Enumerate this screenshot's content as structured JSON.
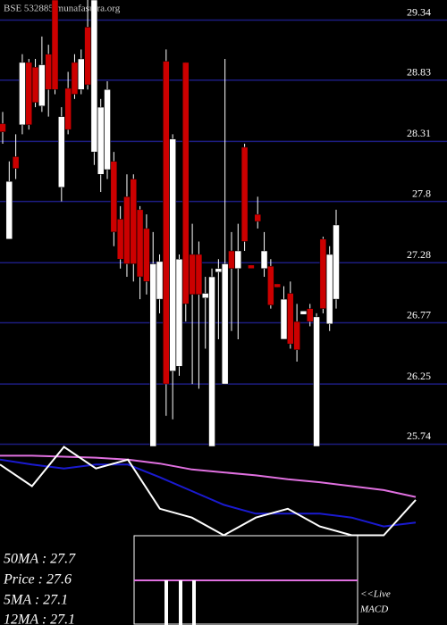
{
  "header": "BSE 532885 munafasutra.org",
  "chart_data": [
    {
      "type": "candlestick",
      "open": [
        28.4,
        27.42,
        28.12,
        28.39,
        28.92,
        28.88,
        28.55,
        28.99,
        29.45,
        27.86,
        28.7,
        28.92,
        28.69,
        29.22,
        28.16,
        27.97,
        28.01,
        28.08,
        27.59,
        27.78,
        27.93,
        27.67,
        27.51,
        25.66,
        26.91,
        28.93,
        26.3,
        26.34,
        28.92,
        27.29,
        27.29,
        26.92,
        25.66,
        27.14,
        26.19,
        27.32,
        27.17,
        28.2,
        27.2,
        27.63,
        27.17,
        27.19,
        27.04,
        26.57,
        26.96,
        26.72,
        26.78,
        26.83,
        25.66,
        27.42,
        26.7,
        26.91
      ],
      "high": [
        28.5,
        28.08,
        28.31,
        28.99,
        28.95,
        28.95,
        29.14,
        29.07,
        29.45,
        28.54,
        28.84,
        28.99,
        29.03,
        29.45,
        29.45,
        28.61,
        28.76,
        28.16,
        27.7,
        27.97,
        27.97,
        27.7,
        27.63,
        27.48,
        27.29,
        29.03,
        28.31,
        27.29,
        28.92,
        27.55,
        27.4,
        27.1,
        27.17,
        27.25,
        28.95,
        27.48,
        27.55,
        28.23,
        27.2,
        27.78,
        27.48,
        27.25,
        27.04,
        27.02,
        27.06,
        26.87,
        26.81,
        26.87,
        26.79,
        27.44,
        27.36,
        27.67
      ],
      "low": [
        28.23,
        27.42,
        27.93,
        28.31,
        28.35,
        28.54,
        28.5,
        28.46,
        28.65,
        27.74,
        28.31,
        28.61,
        28.65,
        28.69,
        28.05,
        27.82,
        27.93,
        27.36,
        27.17,
        27.1,
        27.06,
        26.91,
        26.95,
        25.66,
        26.79,
        25.92,
        25.89,
        26.26,
        26.72,
        26.19,
        26.15,
        26.49,
        25.66,
        26.57,
        26.19,
        26.64,
        26.57,
        27.32,
        27.17,
        27.51,
        27.1,
        26.83,
        27.01,
        26.57,
        26.49,
        26.38,
        26.78,
        26.68,
        25.66,
        26.79,
        26.64,
        26.83
      ],
      "close": [
        28.33,
        27.91,
        28.02,
        28.92,
        28.39,
        28.58,
        28.9,
        28.69,
        28.69,
        28.46,
        28.35,
        28.65,
        28.95,
        28.73,
        29.45,
        28.54,
        28.69,
        27.48,
        27.25,
        27.21,
        27.21,
        27.1,
        27.06,
        27.21,
        27.23,
        26.19,
        28.27,
        27.25,
        26.87,
        26.95,
        26.95,
        26.96,
        27.1,
        27.17,
        27.21,
        27.17,
        27.32,
        27.4,
        27.17,
        27.57,
        27.32,
        26.86,
        27.01,
        26.91,
        26.53,
        26.48,
        26.81,
        26.72,
        26.76,
        26.83,
        27.29,
        27.54
      ],
      "up_color": "#ffffff",
      "down_color": "#cc0000",
      "ylim": [
        25.66,
        29.45
      ],
      "yticks": [
        29.34,
        28.83,
        28.31,
        27.8,
        27.28,
        26.77,
        26.25,
        25.74
      ],
      "grid": true
    },
    {
      "type": "line",
      "ylim": [
        0,
        100
      ],
      "series": [
        {
          "color": "#e070e0",
          "values": [
            86,
            86,
            85,
            84,
            82,
            78,
            72,
            69,
            66,
            62,
            59,
            55,
            51,
            44
          ]
        },
        {
          "color": "#1a1ad0",
          "values": [
            82,
            77,
            73,
            77,
            77,
            64,
            50,
            36,
            27,
            27,
            27,
            23,
            14,
            18
          ]
        },
        {
          "color": "#ffffff",
          "values": [
            77,
            55,
            95,
            73,
            82,
            32,
            23,
            5,
            23,
            32,
            14,
            5,
            5,
            41
          ]
        }
      ]
    }
  ],
  "stats": [
    "50MA : 27.7",
    "Price : 27.6",
    "5MA : 27.1",
    "12MA : 27.1"
  ],
  "macd_label": [
    "<<Live",
    "MACD"
  ]
}
